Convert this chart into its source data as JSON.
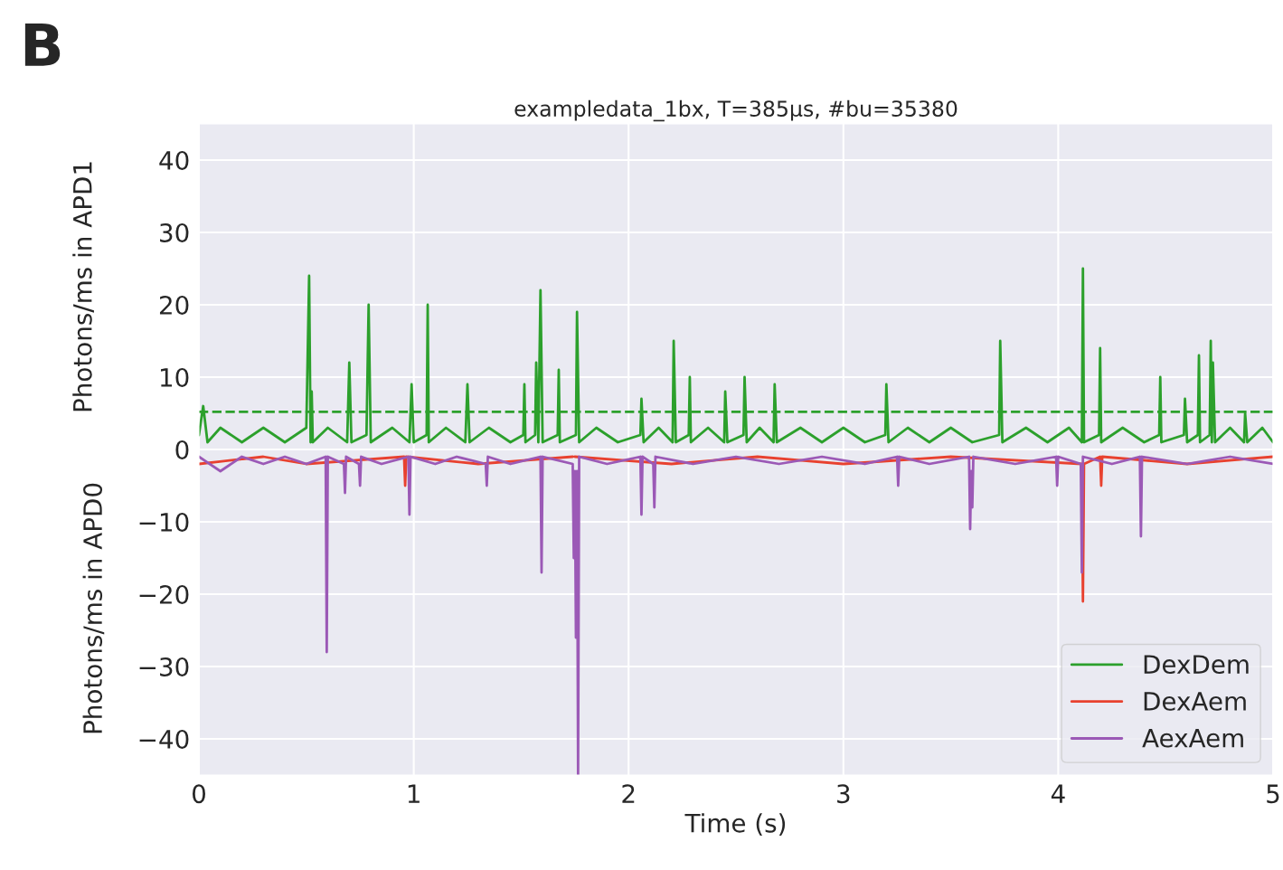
{
  "chart_data": {
    "type": "line",
    "title": "exampledata_1bx, T=385µs, #bu=35380",
    "xlabel": "Time (s)",
    "ylabel": "Photons/ms in APD1",
    "annotations": [
      "Photons/ms in APD0",
      "B"
    ],
    "xlim": [
      0,
      5
    ],
    "ylim": [
      -45,
      45
    ],
    "xticks": [
      0,
      1,
      2,
      3,
      4,
      5
    ],
    "yticks": [
      {
        "value": -40,
        "label": "−40"
      },
      {
        "value": -30,
        "label": "−30"
      },
      {
        "value": -20,
        "label": "−20"
      },
      {
        "value": -10,
        "label": "−10"
      },
      0,
      10,
      20,
      30,
      40
    ],
    "grid": true,
    "legend": "bottom right",
    "line_style": "solid",
    "marker": "none",
    "ref_lines": [
      {
        "axis": "y",
        "value": 5.2,
        "label": null,
        "color": "#2ca02c",
        "line_style": "dashed"
      }
    ],
    "series": [
      {
        "name": "DexDem",
        "color": "#2ca02c",
        "x": [
          0,
          0.02,
          0.04,
          0.1,
          0.2,
          0.3,
          0.4,
          0.5,
          0.513,
          0.52,
          0.525,
          0.53,
          0.6,
          0.69,
          0.7,
          0.71,
          0.78,
          0.79,
          0.8,
          0.9,
          0.98,
          0.99,
          1.0,
          1.06,
          1.065,
          1.07,
          1.15,
          1.24,
          1.25,
          1.26,
          1.35,
          1.45,
          1.51,
          1.515,
          1.52,
          1.565,
          1.57,
          1.58,
          1.59,
          1.6,
          1.67,
          1.675,
          1.68,
          1.755,
          1.76,
          1.77,
          1.85,
          1.95,
          2.055,
          2.06,
          2.07,
          2.14,
          2.205,
          2.21,
          2.22,
          2.28,
          2.285,
          2.29,
          2.37,
          2.445,
          2.45,
          2.46,
          2.535,
          2.54,
          2.55,
          2.61,
          2.675,
          2.68,
          2.69,
          2.8,
          2.9,
          3.0,
          3.1,
          3.195,
          3.2,
          3.21,
          3.3,
          3.4,
          3.5,
          3.6,
          3.725,
          3.73,
          3.74,
          3.85,
          3.95,
          4.05,
          4.11,
          4.115,
          4.12,
          4.19,
          4.195,
          4.2,
          4.3,
          4.4,
          4.47,
          4.475,
          4.48,
          4.585,
          4.59,
          4.6,
          4.65,
          4.655,
          4.66,
          4.705,
          4.71,
          4.715,
          4.72,
          4.73,
          4.8,
          4.865,
          4.87,
          4.88,
          4.95,
          5.0
        ],
        "values": [
          2,
          6,
          1,
          3,
          1,
          3,
          1,
          3,
          24,
          1,
          8,
          1,
          3,
          1,
          12,
          1,
          2,
          20,
          1,
          3,
          1,
          9,
          1,
          2,
          20,
          1,
          3,
          1,
          9,
          1,
          3,
          1,
          2,
          9,
          1,
          2,
          12,
          1,
          22,
          1,
          2,
          11,
          1,
          2,
          19,
          1,
          3,
          1,
          2,
          7,
          1,
          3,
          1,
          15,
          1,
          2,
          10,
          1,
          3,
          1,
          8,
          1,
          2,
          10,
          1,
          3,
          1,
          9,
          1,
          3,
          1,
          3,
          1,
          2,
          9,
          1,
          3,
          1,
          3,
          1,
          2,
          15,
          1,
          3,
          1,
          3,
          1,
          25,
          1,
          2,
          14,
          1,
          3,
          1,
          2,
          10,
          1,
          2,
          7,
          1,
          2,
          13,
          1,
          2,
          15,
          1,
          12,
          1,
          3,
          1,
          5,
          1,
          3,
          1
        ]
      },
      {
        "name": "DexAem",
        "color": "#e8412f",
        "x": [
          0,
          0.3,
          0.5,
          0.955,
          0.96,
          0.965,
          1.3,
          1.74,
          1.745,
          1.75,
          2.2,
          2.6,
          3.0,
          3.5,
          4.11,
          4.115,
          4.12,
          4.195,
          4.2,
          4.205,
          4.6,
          5.0
        ],
        "values": [
          -2,
          -1,
          -2,
          -1,
          -5,
          -1,
          -2,
          -1,
          null,
          -1,
          -2,
          -1,
          -2,
          -1,
          -2,
          -21,
          -2,
          -1,
          -5,
          -1,
          -2,
          -1
        ]
      },
      {
        "name": "AexAem",
        "color": "#9b59b6",
        "x": [
          0,
          0.1,
          0.2,
          0.3,
          0.4,
          0.5,
          0.59,
          0.595,
          0.6,
          0.675,
          0.68,
          0.685,
          0.745,
          0.75,
          0.755,
          0.85,
          0.975,
          0.98,
          0.985,
          1.1,
          1.2,
          1.335,
          1.34,
          1.345,
          1.45,
          1.59,
          1.595,
          1.6,
          1.74,
          1.745,
          1.75,
          1.755,
          1.76,
          1.765,
          1.77,
          1.9,
          2.055,
          2.06,
          2.065,
          2.115,
          2.12,
          2.125,
          2.3,
          2.5,
          2.7,
          2.9,
          3.1,
          3.25,
          3.255,
          3.26,
          3.4,
          3.585,
          3.59,
          3.595,
          3.6,
          3.605,
          3.8,
          3.99,
          3.995,
          4.0,
          4.105,
          4.11,
          4.115,
          4.25,
          4.38,
          4.385,
          4.39,
          4.6,
          4.8,
          5.0
        ],
        "values": [
          -1,
          -3,
          -1,
          -2,
          -1,
          -2,
          -1,
          -28,
          -1,
          -2,
          -6,
          -1,
          -2,
          -5,
          -1,
          -2,
          -1,
          -9,
          -1,
          -2,
          -1,
          -2,
          -5,
          -1,
          -2,
          -1,
          -17,
          -1,
          -2,
          -15,
          -3,
          -26,
          -3,
          -45,
          -1,
          -2,
          -1,
          -9,
          -1,
          -2,
          -8,
          -1,
          -2,
          -1,
          -2,
          -1,
          -2,
          -1,
          -5,
          -1,
          -2,
          -1,
          -11,
          -3,
          -8,
          -1,
          -2,
          -1,
          -5,
          -1,
          -2,
          -17,
          -1,
          -2,
          -1,
          -12,
          -1,
          -2,
          -1,
          -2
        ]
      }
    ]
  }
}
